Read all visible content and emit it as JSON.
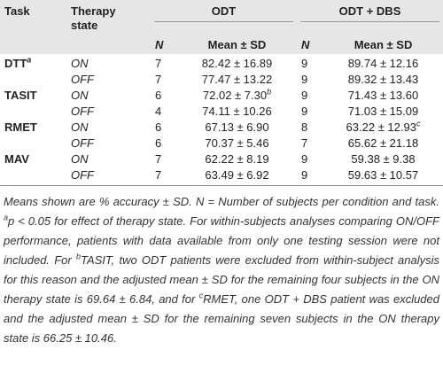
{
  "header": {
    "task": "Task",
    "state": "Therapy state",
    "groups": [
      {
        "name": "ODT",
        "n": "N",
        "mean": "Mean ± SD"
      },
      {
        "name": "ODT + DBS",
        "n": "N",
        "mean": "Mean ± SD"
      }
    ]
  },
  "rows": [
    [
      {
        "text": "DTT",
        "sup": "a"
      },
      "ON",
      7,
      "82.42 ± 16.89",
      9,
      "89.74 ± 12.16"
    ],
    [
      null,
      "OFF",
      7,
      "77.47 ± 13.22",
      9,
      "89.32 ± 13.43"
    ],
    [
      {
        "text": "TASIT"
      },
      "ON",
      6,
      {
        "text": "72.02 ± 7.30",
        "sup": "b"
      },
      9,
      "71.43 ± 13.60"
    ],
    [
      null,
      "OFF",
      4,
      "74.11 ± 10.26",
      9,
      "71.03 ± 15.09"
    ],
    [
      {
        "text": "RMET"
      },
      "ON",
      6,
      "67.13 ± 6.90",
      8,
      {
        "text": "63.22 ± 12.93",
        "sup": "c"
      }
    ],
    [
      null,
      "OFF",
      6,
      "70.37 ± 5.46",
      7,
      "65.62 ± 21.18"
    ],
    [
      {
        "text": "MAV"
      },
      "ON",
      7,
      "62.22 ± 8.19",
      9,
      "59.38 ± 9.38"
    ],
    [
      null,
      "OFF",
      7,
      "63.49 ± 6.92",
      9,
      "59.63 ± 10.57"
    ]
  ],
  "footnote": [
    "Means shown are % accuracy ± SD. N = Number of subjects per condition and task. ",
    {
      "sup": "a"
    },
    "p < 0.05 for effect of therapy state. For within-subjects analyses comparing ON/OFF performance, patients with data available from only one testing session were not included. For ",
    {
      "sup": "b"
    },
    "TASIT, two ODT patients were excluded from within-subject analysis for this reason and the adjusted mean ± SD for the remaining four subjects in the ON therapy state is 69.64 ± 6.84, and for ",
    {
      "sup": "c"
    },
    "RMET, one ODT + DBS patient was excluded and the adjusted mean ± SD for the remaining seven subjects in the ON therapy state is 66.25 ± 10.46."
  ]
}
